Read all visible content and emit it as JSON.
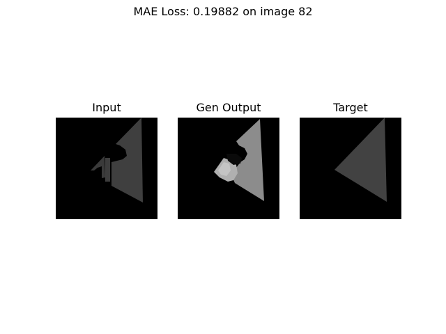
{
  "figure": {
    "title": "MAE Loss: 0.19882 on image 82"
  },
  "panels": [
    {
      "title": "Input"
    },
    {
      "title": "Gen Output"
    },
    {
      "title": "Target"
    }
  ],
  "colors": {
    "background": "#000000",
    "input_shape": "#3f3f3f",
    "output_shape": "#8c8c8c",
    "output_shape_light": "#c4c4c4",
    "target_shape": "#424242"
  }
}
